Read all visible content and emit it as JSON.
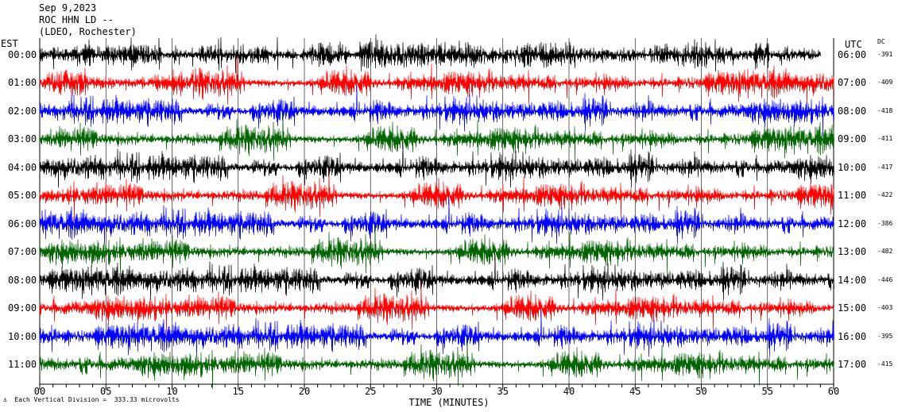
{
  "header": {
    "date": "Sep 9,2023",
    "station": "ROC HHN LD --",
    "location": "(LDEO, Rochester)"
  },
  "labels": {
    "left_timezone": "EST",
    "right_timezone": "UTC",
    "dc_header": "DC",
    "footer_note": "Each Vertical Division =  333.33 microvolts",
    "footer_mark": "⚓"
  },
  "colors": {
    "trace_cycle": [
      "#000000",
      "#ff0000",
      "#0000ff",
      "#006400"
    ],
    "grid": "#000000",
    "background": "#ffffff"
  },
  "chart_data": {
    "type": "line",
    "title": "",
    "xlabel": "TIME (MINUTES)",
    "ylabel": "",
    "xlim": [
      0,
      60
    ],
    "x_ticks": [
      "00",
      "05",
      "10",
      "15",
      "20",
      "25",
      "30",
      "35",
      "40",
      "45",
      "50",
      "55",
      "60"
    ],
    "grid": true,
    "rows": [
      {
        "est": "00:00",
        "utc": "06:00",
        "dc": "-391"
      },
      {
        "est": "01:00",
        "utc": "07:00",
        "dc": "-409"
      },
      {
        "est": "02:00",
        "utc": "08:00",
        "dc": "-418"
      },
      {
        "est": "03:00",
        "utc": "09:00",
        "dc": "-411"
      },
      {
        "est": "04:00",
        "utc": "10:00",
        "dc": "-417"
      },
      {
        "est": "05:00",
        "utc": "11:00",
        "dc": "-422"
      },
      {
        "est": "06:00",
        "utc": "12:00",
        "dc": "-386"
      },
      {
        "est": "07:00",
        "utc": "13:00",
        "dc": "-482"
      },
      {
        "est": "08:00",
        "utc": "14:00",
        "dc": "-446"
      },
      {
        "est": "09:00",
        "utc": "15:00",
        "dc": "-403"
      },
      {
        "est": "10:00",
        "utc": "16:00",
        "dc": "-395"
      },
      {
        "est": "11:00",
        "utc": "17:00",
        "dc": "-415"
      }
    ]
  }
}
